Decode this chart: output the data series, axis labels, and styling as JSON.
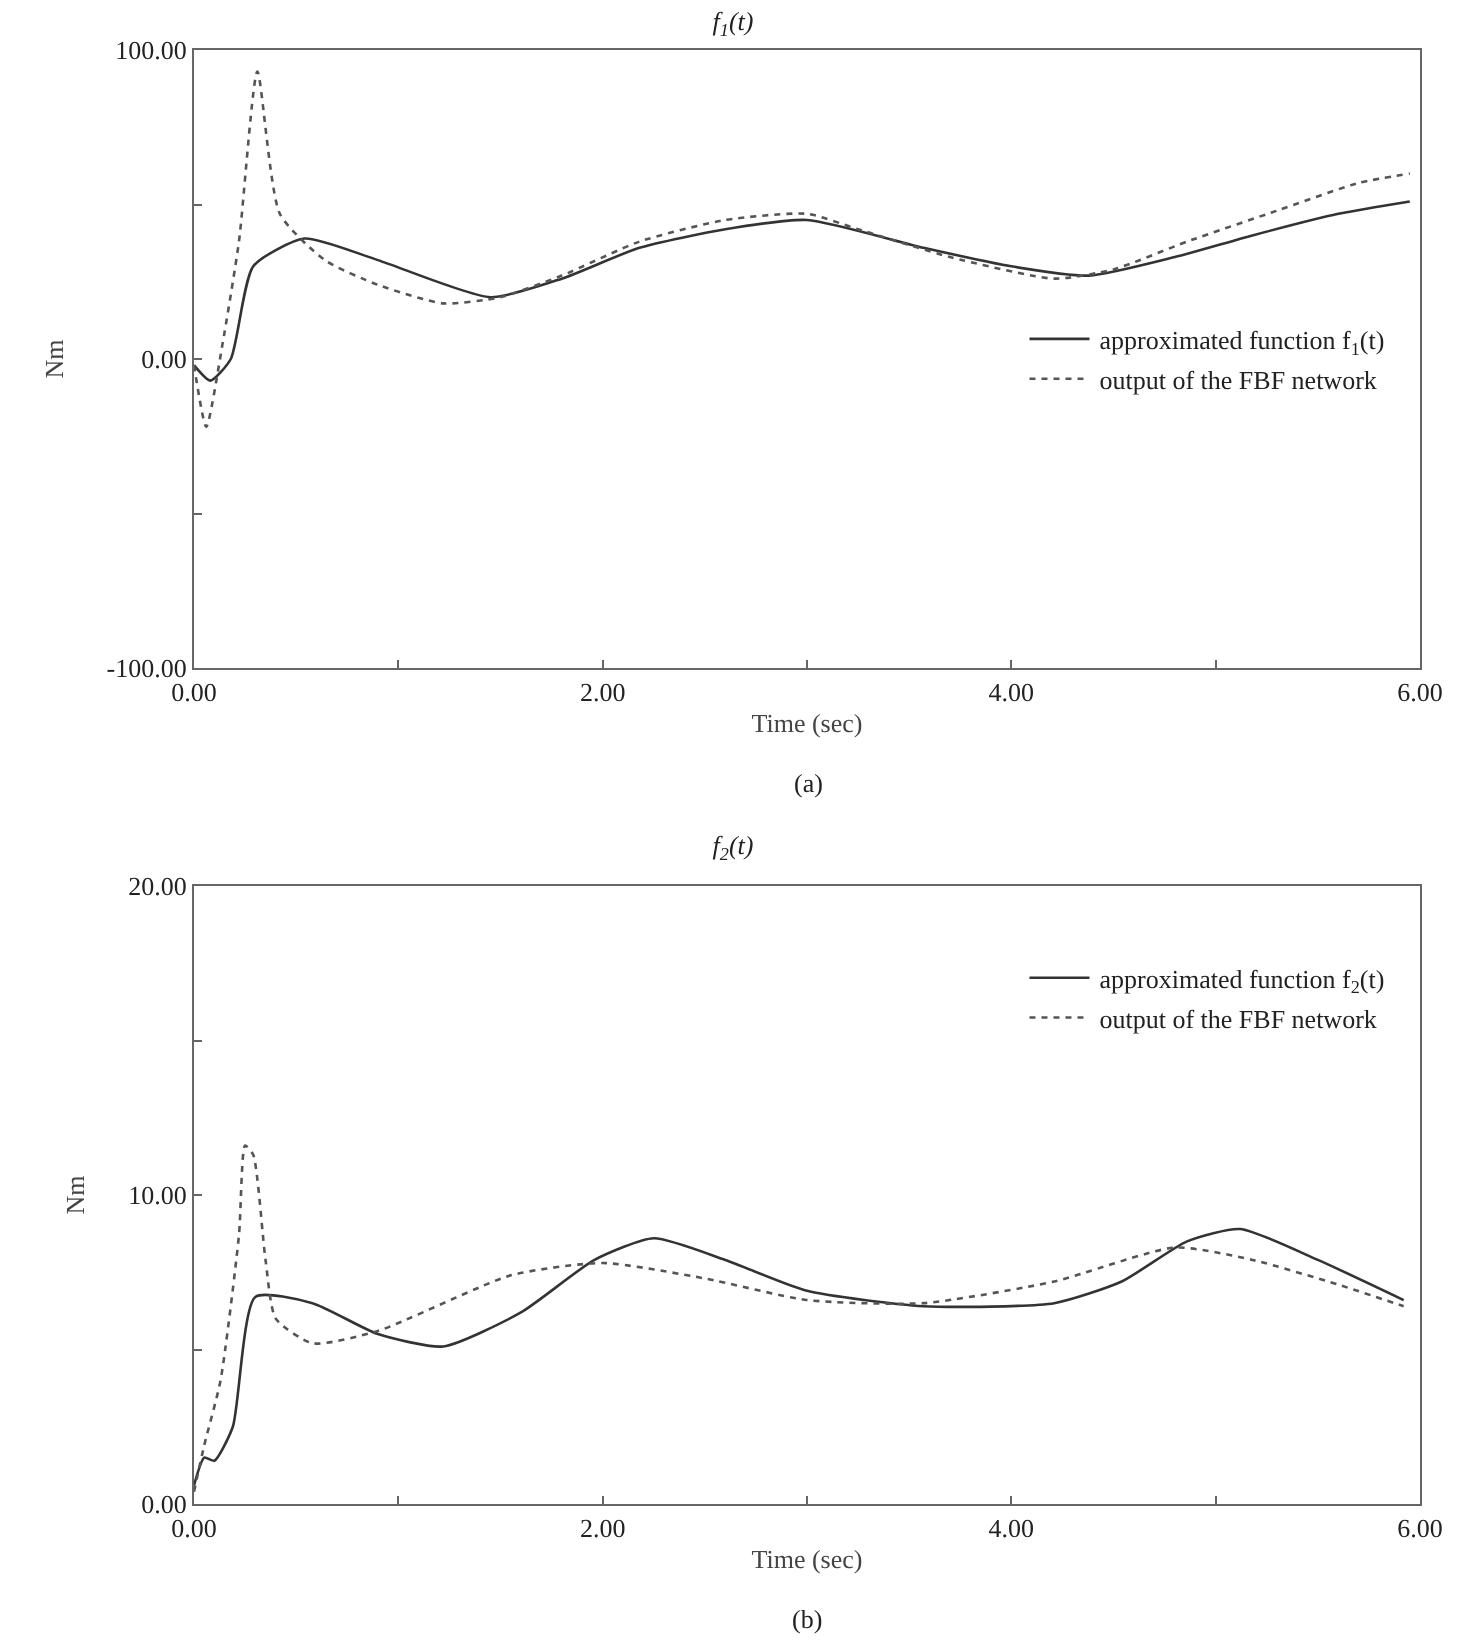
{
  "chart_data": [
    {
      "type": "line",
      "title": "f$_{1}$(t)",
      "xlabel": "Time (sec)",
      "ylabel": "Nm",
      "annotations": [
        "(a)"
      ],
      "xlim": [
        0,
        6
      ],
      "xticks": [
        {
          "value": 0,
          "label": "0.00"
        },
        {
          "value": 1,
          "label": null
        },
        {
          "value": 2,
          "label": "2.00"
        },
        {
          "value": 3,
          "label": null
        },
        {
          "value": 4,
          "label": "4.00"
        },
        {
          "value": 5,
          "label": null
        },
        {
          "value": 6,
          "label": "6.00"
        }
      ],
      "ylim": [
        -100,
        100
      ],
      "yticks": [
        {
          "value": -100,
          "label": "-100.00"
        },
        {
          "value": -50,
          "label": null
        },
        {
          "value": 0,
          "label": "0.00"
        },
        {
          "value": 50,
          "label": null
        },
        {
          "value": 100,
          "label": "100.00"
        }
      ],
      "grid": false,
      "legend": "right",
      "marker": "none",
      "series": [
        {
          "name": "approximated function f$_{1}$(t)",
          "color": "#333333",
          "line_style": "solid",
          "x": [
            0,
            0.08,
            0.18,
            0.29,
            0.54,
            0.9,
            1.45,
            1.8,
            2.18,
            2.6,
            3.0,
            3.57,
            4.0,
            4.38,
            4.8,
            5.18,
            5.6,
            5.95
          ],
          "values": [
            -2,
            -7,
            0,
            30,
            39,
            32,
            20,
            26,
            36,
            42,
            45,
            36,
            30,
            27,
            33,
            40,
            47,
            51
          ]
        },
        {
          "name": "output of the FBF network",
          "color": "#555555",
          "line_style": "dotted",
          "x": [
            0,
            0.06,
            0.14,
            0.22,
            0.31,
            0.42,
            0.64,
            0.9,
            1.22,
            1.5,
            1.8,
            2.18,
            2.6,
            3.0,
            3.25,
            3.7,
            4.21,
            4.5,
            4.86,
            5.3,
            5.7,
            5.95
          ],
          "values": [
            -2,
            -22,
            5,
            38,
            93,
            47,
            32,
            24,
            18,
            20,
            27,
            38,
            45,
            47,
            42,
            33,
            26,
            29,
            38,
            48,
            57,
            60
          ]
        }
      ]
    },
    {
      "type": "line",
      "title": "f$_{2}$(t)",
      "xlabel": "Time (sec)",
      "ylabel": "Nm",
      "annotations": [
        "(b)"
      ],
      "xlim": [
        0,
        6
      ],
      "xticks": [
        {
          "value": 0,
          "label": "0.00"
        },
        {
          "value": 1,
          "label": null
        },
        {
          "value": 2,
          "label": "2.00"
        },
        {
          "value": 3,
          "label": null
        },
        {
          "value": 4,
          "label": "4.00"
        },
        {
          "value": 5,
          "label": null
        },
        {
          "value": 6,
          "label": "6.00"
        }
      ],
      "ylim": [
        0,
        20
      ],
      "yticks": [
        {
          "value": 0,
          "label": "0.00"
        },
        {
          "value": 5,
          "label": null
        },
        {
          "value": 10,
          "label": "10.00"
        },
        {
          "value": 15,
          "label": null
        },
        {
          "value": 20,
          "label": "20.00"
        }
      ],
      "grid": false,
      "legend": "top right",
      "marker": "none",
      "series": [
        {
          "name": "approximated function f$_{2}$(t)",
          "color": "#333333",
          "line_style": "solid",
          "x": [
            0,
            0.05,
            0.1,
            0.19,
            0.3,
            0.58,
            0.9,
            1.22,
            1.6,
            1.96,
            2.25,
            2.6,
            3.0,
            3.57,
            4.21,
            4.54,
            4.86,
            5.12,
            5.5,
            5.92
          ],
          "values": [
            0.6,
            1.5,
            1.4,
            2.5,
            6.7,
            6.5,
            5.5,
            5.1,
            6.2,
            7.9,
            8.6,
            7.9,
            6.9,
            6.4,
            6.5,
            7.2,
            8.5,
            8.9,
            7.9,
            6.6
          ]
        },
        {
          "name": "output of the FBF network",
          "color": "#555555",
          "line_style": "dotted",
          "x": [
            0,
            0.05,
            0.13,
            0.22,
            0.25,
            0.29,
            0.35,
            0.4,
            0.58,
            0.9,
            1.55,
            2.0,
            2.5,
            3.0,
            3.57,
            4.21,
            4.8,
            5.18,
            5.6,
            5.92
          ],
          "values": [
            0.4,
            1.9,
            4.0,
            8.7,
            11.6,
            11.3,
            7.9,
            6.0,
            5.2,
            5.6,
            7.4,
            7.8,
            7.3,
            6.6,
            6.5,
            7.2,
            8.3,
            7.9,
            7.1,
            6.4
          ]
        }
      ]
    }
  ]
}
